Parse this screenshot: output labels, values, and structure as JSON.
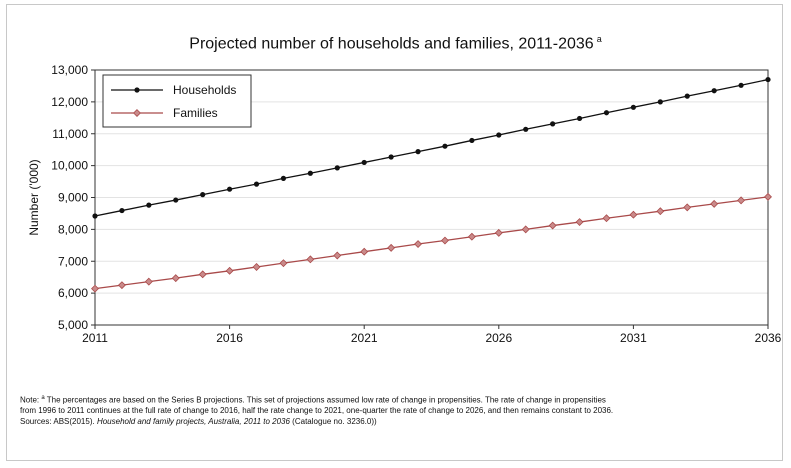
{
  "chart_data": {
    "type": "line",
    "title": "Projected number of households and families, 2011-2036",
    "title_superscript": "a",
    "xlabel": "",
    "ylabel": "Number ('000)",
    "xlim": [
      2011,
      2036
    ],
    "ylim": [
      5000,
      13000
    ],
    "x_ticks": [
      "2011",
      "2016",
      "2021",
      "2026",
      "2031",
      "2036"
    ],
    "y_ticks": [
      "5,000",
      "6,000",
      "7,000",
      "8,000",
      "9,000",
      "10,000",
      "11,000",
      "12,000",
      "13,000"
    ],
    "grid": "horizontal",
    "legend_position": "top-left",
    "x": [
      2011,
      2012,
      2013,
      2014,
      2015,
      2016,
      2017,
      2018,
      2019,
      2020,
      2021,
      2022,
      2023,
      2024,
      2025,
      2026,
      2027,
      2028,
      2029,
      2030,
      2031,
      2032,
      2033,
      2034,
      2035,
      2036
    ],
    "series": [
      {
        "name": "Households",
        "color": "#111111",
        "marker": "circle",
        "values": [
          8420,
          8590,
          8760,
          8920,
          9090,
          9260,
          9420,
          9600,
          9760,
          9930,
          10100,
          10270,
          10440,
          10610,
          10790,
          10960,
          11140,
          11310,
          11480,
          11660,
          11830,
          12000,
          12180,
          12350,
          12520,
          12700
        ]
      },
      {
        "name": "Families",
        "color": "#a94a4a",
        "marker": "diamond",
        "values": [
          6140,
          6250,
          6360,
          6470,
          6590,
          6700,
          6820,
          6940,
          7060,
          7180,
          7300,
          7420,
          7540,
          7650,
          7770,
          7890,
          8000,
          8120,
          8230,
          8350,
          8460,
          8570,
          8690,
          8800,
          8910,
          9020
        ]
      }
    ]
  },
  "note": {
    "prefix": "Note: ",
    "superscript": "a",
    "line1_rest": " The percentages are based on the Series B projections. This set of projections assumed low rate of change in propensities. The rate of change in propensities",
    "line2": "from 1996 to 2011 continues at the full rate of change to 2016, half the rate change to 2021, one-quarter the rate of change to 2026, and then remains constant to 2036.",
    "line3_prefix": "Sources: ABS(2015). ",
    "line3_italic": "Household and family projects, Australia, 2011 to 2036",
    "line3_suffix": " (Catalogue no. 3236.0))"
  }
}
